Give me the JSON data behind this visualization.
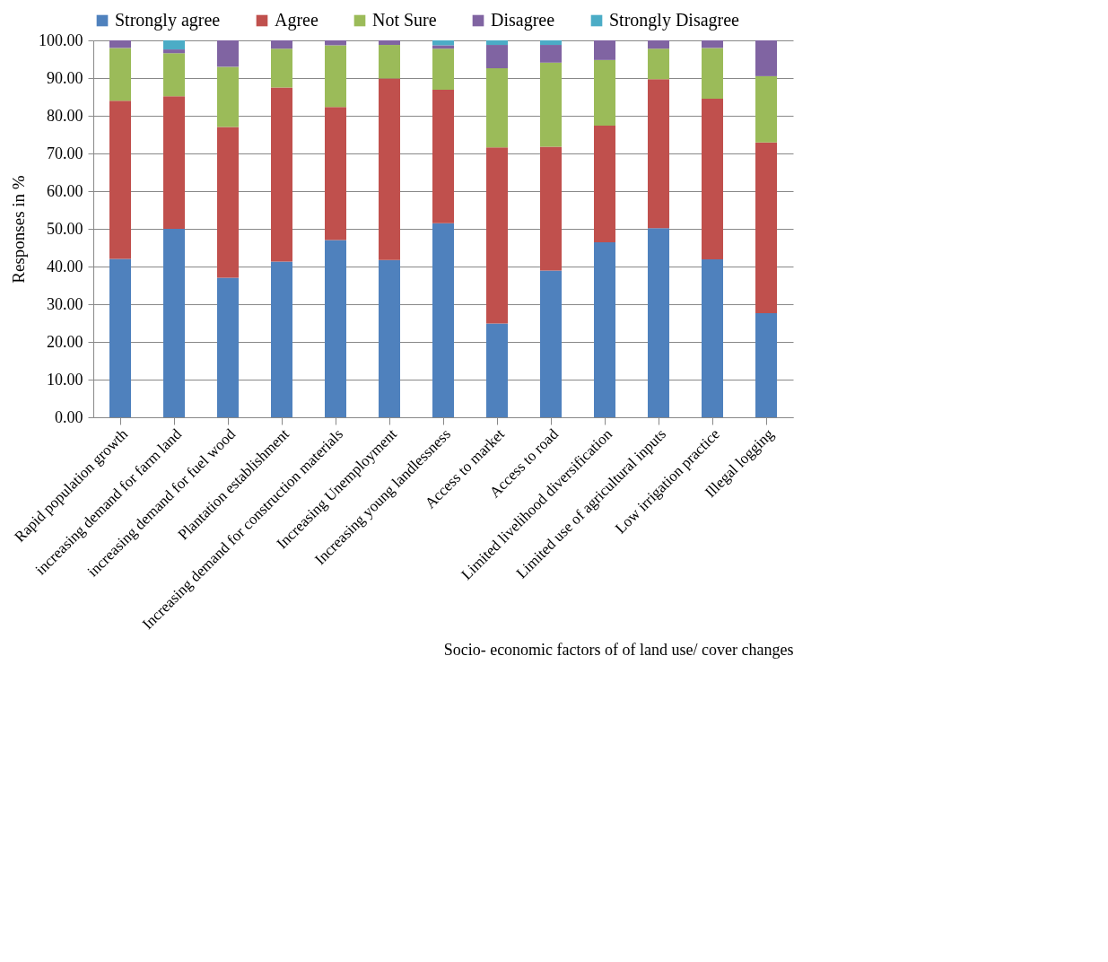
{
  "chart_data": {
    "type": "bar",
    "stacked": true,
    "xlabel": "Socio- economic factors of of land use/ cover changes",
    "ylabel": "Responses in %",
    "categories": [
      "Rapid population growth",
      "increasing demand for farm land",
      "increasing demand for fuel wood",
      "Plantation establishment",
      "Increasing demand for construction materials",
      "Increasing Unemployment",
      "Increasing young landlessness",
      "Access to market",
      "Access to road",
      "Limited livelihood diversification",
      "Limited use of agricultural inputs",
      "Low irrigation practice",
      "Illegal logging"
    ],
    "series": [
      {
        "name": "Strongly agree",
        "color": "#4f81bd",
        "values": [
          42,
          50,
          37,
          41.3,
          47,
          41.7,
          51.5,
          24.9,
          38.9,
          46.4,
          50.2,
          41.9,
          27.6
        ]
      },
      {
        "name": "Agree",
        "color": "#c0504d",
        "values": [
          42,
          35.2,
          40,
          46.2,
          35.3,
          48.2,
          35.4,
          46.7,
          32.9,
          31,
          39.5,
          42.6,
          45.3
        ]
      },
      {
        "name": "Not Sure",
        "color": "#9bbb59",
        "values": [
          14,
          11.4,
          16,
          10.3,
          16.4,
          8.9,
          10.9,
          21,
          22.3,
          17.4,
          8.1,
          13.5,
          17.6
        ]
      },
      {
        "name": "Disagree",
        "color": "#8064a2",
        "values": [
          2,
          1,
          7,
          2.2,
          1.3,
          1.2,
          0.9,
          6.2,
          4.7,
          5.2,
          2.2,
          2,
          9.5
        ]
      },
      {
        "name": "Strongly Disagree",
        "color": "#4bacc6",
        "values": [
          0,
          2.4,
          0,
          0,
          0,
          0,
          1.3,
          1.2,
          1.2,
          0,
          0,
          0,
          0
        ]
      }
    ],
    "ylim": [
      0,
      100
    ],
    "yticks": [
      {
        "value": 0,
        "label": "0.00"
      },
      {
        "value": 10,
        "label": "10.00"
      },
      {
        "value": 20,
        "label": "20.00"
      },
      {
        "value": 30,
        "label": "30.00"
      },
      {
        "value": 40,
        "label": "40.00"
      },
      {
        "value": 50,
        "label": "50.00"
      },
      {
        "value": 60,
        "label": "60.00"
      },
      {
        "value": 70,
        "label": "70.00"
      },
      {
        "value": 80,
        "label": "80.00"
      },
      {
        "value": 90,
        "label": "90.00"
      },
      {
        "value": 100,
        "label": "100.00"
      }
    ],
    "grid": "y",
    "legend": "top"
  }
}
